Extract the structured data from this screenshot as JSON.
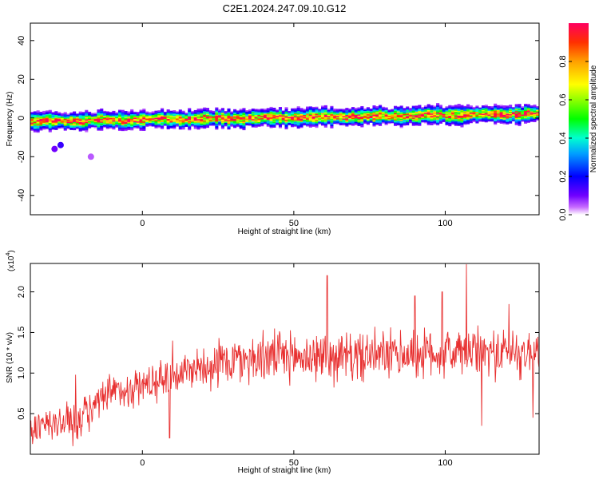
{
  "title": "C2E1.2024.247.09.10.G12",
  "chart_data": [
    {
      "type": "heatmap",
      "name": "spectrogram",
      "xlabel": "Height of straight line (km)",
      "ylabel": "Frequency (Hz)",
      "xlim": [
        -37,
        131
      ],
      "ylim": [
        -50,
        49
      ],
      "xticks": [
        0,
        50,
        100
      ],
      "yticks": [
        -40,
        -20,
        0,
        20,
        40
      ],
      "colorbar": {
        "label": "Normalized spectral amplitude",
        "range": [
          0,
          1
        ],
        "ticks": [
          "0.0",
          "0.2",
          "0.4",
          "0.6",
          "0.8"
        ],
        "tick_values": [
          0.0,
          0.2,
          0.4,
          0.6,
          0.8
        ]
      },
      "band": {
        "center_frequency_start_hz": -2,
        "center_frequency_end_hz": 2,
        "half_width_hz": 4,
        "peak_amplitude": 1.0
      },
      "outliers": [
        {
          "x": -27,
          "y": -14,
          "amplitude": 0.15
        },
        {
          "x": -29,
          "y": -16,
          "amplitude": 0.1
        },
        {
          "x": -17,
          "y": -20,
          "amplitude": 0.05
        }
      ]
    },
    {
      "type": "line",
      "name": "snr",
      "xlabel": "Height of straight line (km)",
      "ylabel": "SNR (10 * v/v)",
      "multiplier_label": "(x10",
      "multiplier_exp": "4",
      "xlim": [
        -37,
        131
      ],
      "ylim": [
        0.0,
        2.35
      ],
      "xticks": [
        0,
        50,
        100
      ],
      "yticks": [
        0.5,
        1.0,
        1.5,
        2.0
      ],
      "ytick_labels": [
        "0.5",
        "1.0",
        "1.5",
        "2.0"
      ],
      "color": "#e83030",
      "trend": [
        {
          "x": -37,
          "y": 0.3
        },
        {
          "x": -20,
          "y": 0.45
        },
        {
          "x": -10,
          "y": 0.75
        },
        {
          "x": 0,
          "y": 0.85
        },
        {
          "x": 8,
          "y": 0.95
        },
        {
          "x": 20,
          "y": 1.1
        },
        {
          "x": 40,
          "y": 1.2
        },
        {
          "x": 70,
          "y": 1.2
        },
        {
          "x": 100,
          "y": 1.25
        },
        {
          "x": 131,
          "y": 1.25
        }
      ],
      "spikes": [
        {
          "x": 61,
          "y": 2.2
        },
        {
          "x": 107,
          "y": 2.34
        },
        {
          "x": 99,
          "y": 2.0
        },
        {
          "x": 90,
          "y": 1.95
        },
        {
          "x": 121,
          "y": 1.85
        },
        {
          "x": 10,
          "y": 1.4
        },
        {
          "x": -22,
          "y": 0.98
        }
      ],
      "dips": [
        {
          "x": 9,
          "y": 0.2
        },
        {
          "x": -23,
          "y": 0.1
        },
        {
          "x": 112,
          "y": 0.35
        },
        {
          "x": 129,
          "y": 0.45
        }
      ]
    }
  ]
}
